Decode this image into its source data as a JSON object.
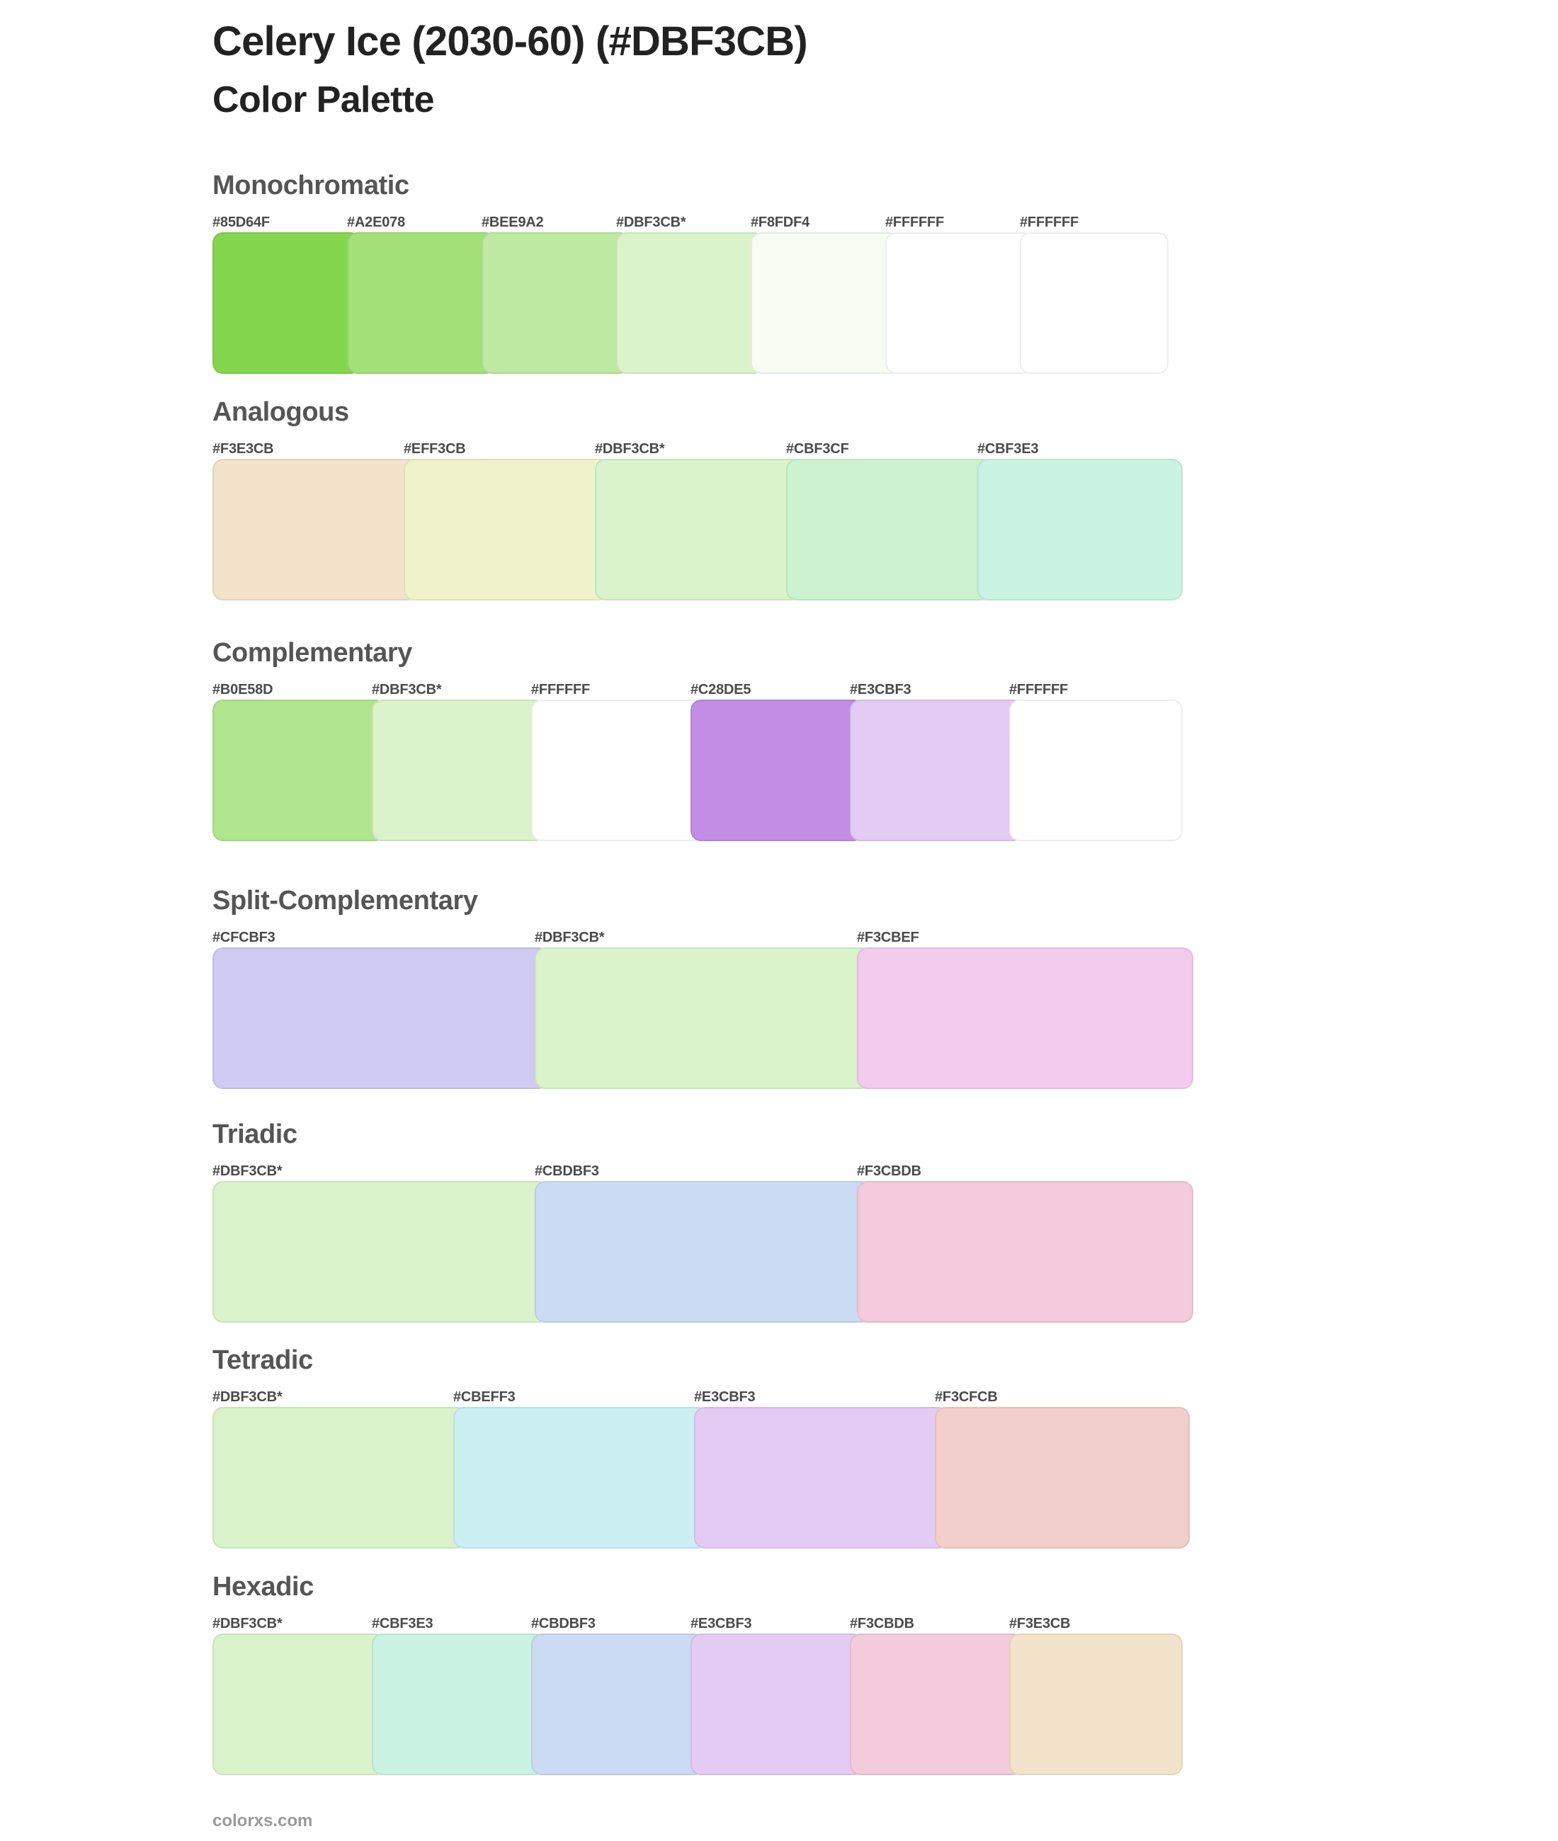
{
  "header": {
    "title": "Celery Ice (2030-60) (#DBF3CB)",
    "subtitle": "Color Palette"
  },
  "base_color": "#DBF3CB",
  "sections": [
    {
      "name": "Monochromatic",
      "swatches": [
        {
          "label": "#85D64F",
          "color": "#85D64F"
        },
        {
          "label": "#A2E078",
          "color": "#A2E078"
        },
        {
          "label": "#BEE9A2",
          "color": "#BEE9A2"
        },
        {
          "label": "#DBF3CB*",
          "color": "#DBF3CB"
        },
        {
          "label": "#F8FDF4",
          "color": "#F8FDF4"
        },
        {
          "label": "#FFFFFF",
          "color": "#FFFFFF"
        },
        {
          "label": "#FFFFFF",
          "color": "#FFFFFF"
        }
      ]
    },
    {
      "name": "Analogous",
      "swatches": [
        {
          "label": "#F3E3CB",
          "color": "#F3E3CB"
        },
        {
          "label": "#EFF3CB",
          "color": "#EFF3CB"
        },
        {
          "label": "#DBF3CB*",
          "color": "#DBF3CB"
        },
        {
          "label": "#CBF3CF",
          "color": "#CBF3CF"
        },
        {
          "label": "#CBF3E3",
          "color": "#CBF3E3"
        }
      ]
    },
    {
      "name": "Complementary",
      "swatches": [
        {
          "label": "#B0E58D",
          "color": "#B0E58D"
        },
        {
          "label": "#DBF3CB*",
          "color": "#DBF3CB"
        },
        {
          "label": "#FFFFFF",
          "color": "#FFFFFF"
        },
        {
          "label": "#C28DE5",
          "color": "#C28DE5"
        },
        {
          "label": "#E3CBF3",
          "color": "#E3CBF3"
        },
        {
          "label": "#FFFFFF",
          "color": "#FFFFFF"
        }
      ]
    },
    {
      "name": "Split-Complementary",
      "swatches": [
        {
          "label": "#CFCBF3",
          "color": "#CFCBF3"
        },
        {
          "label": "#DBF3CB*",
          "color": "#DBF3CB"
        },
        {
          "label": "#F3CBEF",
          "color": "#F3CBEF"
        }
      ]
    },
    {
      "name": "Triadic",
      "swatches": [
        {
          "label": "#DBF3CB*",
          "color": "#DBF3CB"
        },
        {
          "label": "#CBDBF3",
          "color": "#CBDBF3"
        },
        {
          "label": "#F3CBDB",
          "color": "#F3CBDB"
        }
      ]
    },
    {
      "name": "Tetradic",
      "swatches": [
        {
          "label": "#DBF3CB*",
          "color": "#DBF3CB"
        },
        {
          "label": "#CBEFF3",
          "color": "#CBEFF3"
        },
        {
          "label": "#E3CBF3",
          "color": "#E3CBF3"
        },
        {
          "label": "#F3CFCB",
          "color": "#F3CFCB"
        }
      ]
    },
    {
      "name": "Hexadic",
      "swatches": [
        {
          "label": "#DBF3CB*",
          "color": "#DBF3CB"
        },
        {
          "label": "#CBF3E3",
          "color": "#CBF3E3"
        },
        {
          "label": "#CBDBF3",
          "color": "#CBDBF3"
        },
        {
          "label": "#E3CBF3",
          "color": "#E3CBF3"
        },
        {
          "label": "#F3CBDB",
          "color": "#F3CBDB"
        },
        {
          "label": "#F3E3CB",
          "color": "#F3E3CB"
        }
      ]
    }
  ],
  "footer": {
    "text": "colorxs.com"
  }
}
